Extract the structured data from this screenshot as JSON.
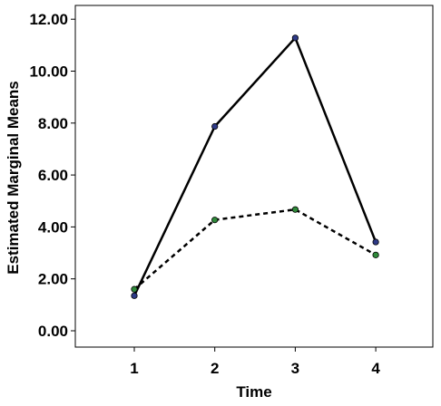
{
  "chart_data": {
    "type": "line",
    "title": "",
    "xlabel": "Time",
    "ylabel": "Estimated Marginal Means",
    "categories": [
      "1",
      "2",
      "3",
      "4"
    ],
    "ylim": [
      0,
      12
    ],
    "y_ticks": [
      "0.00",
      "2.00",
      "4.00",
      "6.00",
      "8.00",
      "10.00",
      "12.00"
    ],
    "y_tick_values": [
      0,
      2,
      4,
      6,
      8,
      10,
      12
    ],
    "grid": false,
    "legend": "none",
    "series": [
      {
        "values": [
          1.35,
          7.87,
          11.28,
          3.42
        ],
        "line_style": "solid",
        "color": "#000000",
        "marker_color": "#2e3a87"
      },
      {
        "values": [
          1.6,
          4.27,
          4.67,
          2.92
        ],
        "line_style": "dashed",
        "color": "#000000",
        "marker_color": "#2f8a3a"
      }
    ]
  }
}
